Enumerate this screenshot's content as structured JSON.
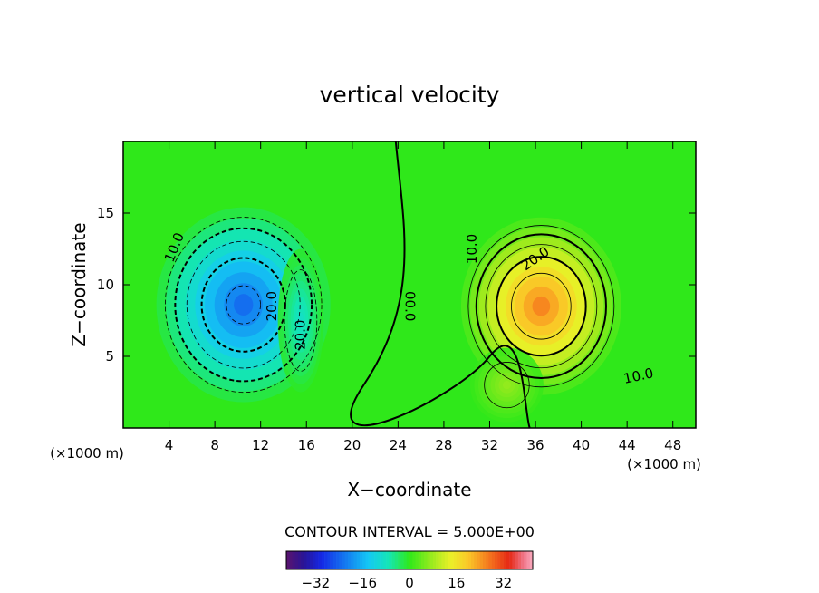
{
  "chart_data": {
    "type": "contour",
    "title": "vertical velocity",
    "xlabel": "X−coordinate",
    "ylabel": "Z−coordinate",
    "x_unit_left": "(×1000 m)",
    "x_unit_right": "(×1000 m)",
    "xlim": [
      0,
      50
    ],
    "ylim": [
      0,
      20
    ],
    "x_ticks": [
      4,
      8,
      12,
      16,
      20,
      24,
      28,
      32,
      36,
      40,
      44,
      48
    ],
    "y_ticks": [
      5,
      10,
      15
    ],
    "contour_interval_text": "CONTOUR INTERVAL = 5.000E+00",
    "contour_labels": [
      {
        "text": "10.0",
        "x": 4.5,
        "y": 12.6,
        "angle": -68
      },
      {
        "text": "20.0",
        "x": 13.0,
        "y": 8.5,
        "angle": -90
      },
      {
        "text": "20.0",
        "x": 15.5,
        "y": 6.5,
        "angle": -90
      },
      {
        "text": "00.0",
        "x": 25.0,
        "y": 8.5,
        "angle": 90
      },
      {
        "text": "10.0",
        "x": 30.5,
        "y": 12.5,
        "angle": -90
      },
      {
        "text": "20.0",
        "x": 36.0,
        "y": 11.8,
        "angle": -35
      },
      {
        "text": "10.0",
        "x": 45.0,
        "y": 3.6,
        "angle": -12
      }
    ],
    "cells": [
      {
        "name": "downdraft",
        "x": 10.5,
        "y": 8.6,
        "rx": 7.6,
        "ry": 6.8,
        "peak": -26
      },
      {
        "name": "downdraft-arm",
        "x": 15.5,
        "y": 7.5,
        "rx": 2.0,
        "ry": 5.0,
        "peak": -10
      },
      {
        "name": "updraft",
        "x": 36.5,
        "y": 8.5,
        "rx": 7.0,
        "ry": 6.2,
        "peak": 29
      },
      {
        "name": "updraft-arm",
        "x": 33.5,
        "y": 3.0,
        "rx": 3.2,
        "ry": 2.6,
        "peak": 8
      }
    ],
    "colorbar": {
      "ticks": [
        -32,
        -16,
        0,
        16,
        32
      ],
      "tick_labels": [
        "−32",
        "−16",
        "0",
        "16",
        "32"
      ],
      "range": [
        -42,
        42
      ]
    }
  }
}
